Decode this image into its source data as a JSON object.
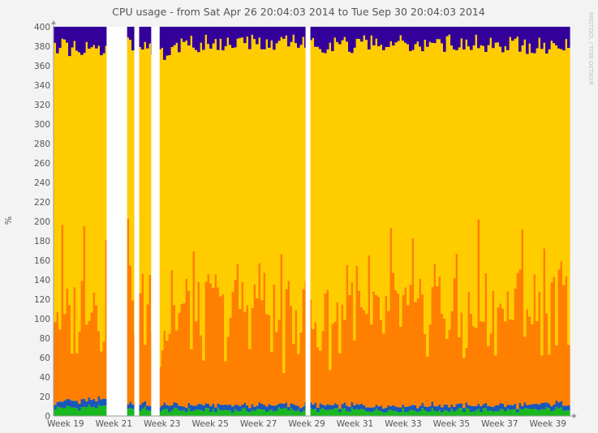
{
  "chart_data": {
    "type": "area",
    "stacked": true,
    "title": "CPU usage - from Sat Apr 26 20:04:03 2014 to Tue Sep 30 20:04:03 2014",
    "ylabel": "%",
    "side_label": "RRDTOOL / TOBI OETIKER",
    "ylim": [
      0,
      400
    ],
    "yticks": [
      "0",
      "20",
      "40",
      "60",
      "80",
      "100",
      "120",
      "140",
      "160",
      "180",
      "200",
      "220",
      "240",
      "260",
      "280",
      "300",
      "320",
      "340",
      "360",
      "380",
      "400"
    ],
    "xlim": [
      18.5,
      39.9
    ],
    "xticks": [
      {
        "label": "Week 19",
        "value": 19
      },
      {
        "label": "Week 21",
        "value": 21
      },
      {
        "label": "Week 23",
        "value": 23
      },
      {
        "label": "Week 25",
        "value": 25
      },
      {
        "label": "Week 27",
        "value": 27
      },
      {
        "label": "Week 29",
        "value": 29
      },
      {
        "label": "Week 31",
        "value": 31
      },
      {
        "label": "Week 33",
        "value": 33
      },
      {
        "label": "Week 35",
        "value": 35
      },
      {
        "label": "Week 37",
        "value": 37
      },
      {
        "label": "Week 39",
        "value": 39
      }
    ],
    "grid": true,
    "colors": {
      "background": "#f3f3f3",
      "canvas": "#ffffff",
      "grid": "#ececec",
      "axis": "#999999",
      "green": "#19b81f",
      "blue": "#1a57b8",
      "orange": "#ff7f00",
      "yellow": "#ffcc00",
      "indigo": "#330099",
      "text": "#555555"
    },
    "gaps": [
      [
        20.7,
        21.55
      ],
      [
        21.85,
        22.05
      ],
      [
        22.55,
        22.9
      ],
      [
        28.95,
        29.15
      ]
    ],
    "profile": {
      "x": [
        18.5,
        19.0,
        19.5,
        20.0,
        20.5,
        21.7,
        22.3,
        23.0,
        23.5,
        24.0,
        24.5,
        25.0,
        25.5,
        26.0,
        26.5,
        27.0,
        27.5,
        28.0,
        28.5,
        29.4,
        30.0,
        30.5,
        31.0,
        31.5,
        32.0,
        32.5,
        33.0,
        33.5,
        34.0,
        34.5,
        35.0,
        35.5,
        36.0,
        36.5,
        37.0,
        37.5,
        38.0,
        38.5,
        39.0,
        39.5,
        39.9
      ],
      "green": [
        8,
        9,
        8,
        10,
        9,
        8,
        7,
        6,
        6,
        6,
        6,
        6,
        6,
        6,
        6,
        6,
        6,
        7,
        6,
        6,
        6,
        6,
        6,
        6,
        6,
        6,
        6,
        6,
        6,
        6,
        6,
        6,
        6,
        6,
        6,
        6,
        6,
        6,
        7,
        7,
        8
      ],
      "blue": [
        6,
        7,
        7,
        7,
        7,
        6,
        5,
        5,
        5,
        5,
        5,
        5,
        5,
        5,
        5,
        5,
        5,
        5,
        5,
        5,
        5,
        5,
        5,
        5,
        5,
        5,
        5,
        5,
        5,
        5,
        5,
        5,
        5,
        5,
        5,
        5,
        5,
        5,
        6,
        6,
        6
      ],
      "orange": [
        110,
        75,
        90,
        120,
        90,
        110,
        90,
        80,
        90,
        100,
        80,
        95,
        85,
        90,
        105,
        100,
        95,
        70,
        100,
        75,
        80,
        95,
        110,
        70,
        85,
        95,
        100,
        80,
        95,
        105,
        90,
        80,
        95,
        100,
        85,
        100,
        110,
        95,
        90,
        105,
        100
      ],
      "indigo": [
        22,
        20,
        25,
        24,
        22,
        15,
        20,
        28,
        24,
        18,
        18,
        16,
        18,
        17,
        16,
        18,
        16,
        18,
        15,
        20,
        18,
        16,
        20,
        16,
        18,
        16,
        17,
        20,
        16,
        18,
        16,
        17,
        16,
        18,
        18,
        17,
        20,
        18,
        20,
        20,
        22
      ]
    }
  }
}
